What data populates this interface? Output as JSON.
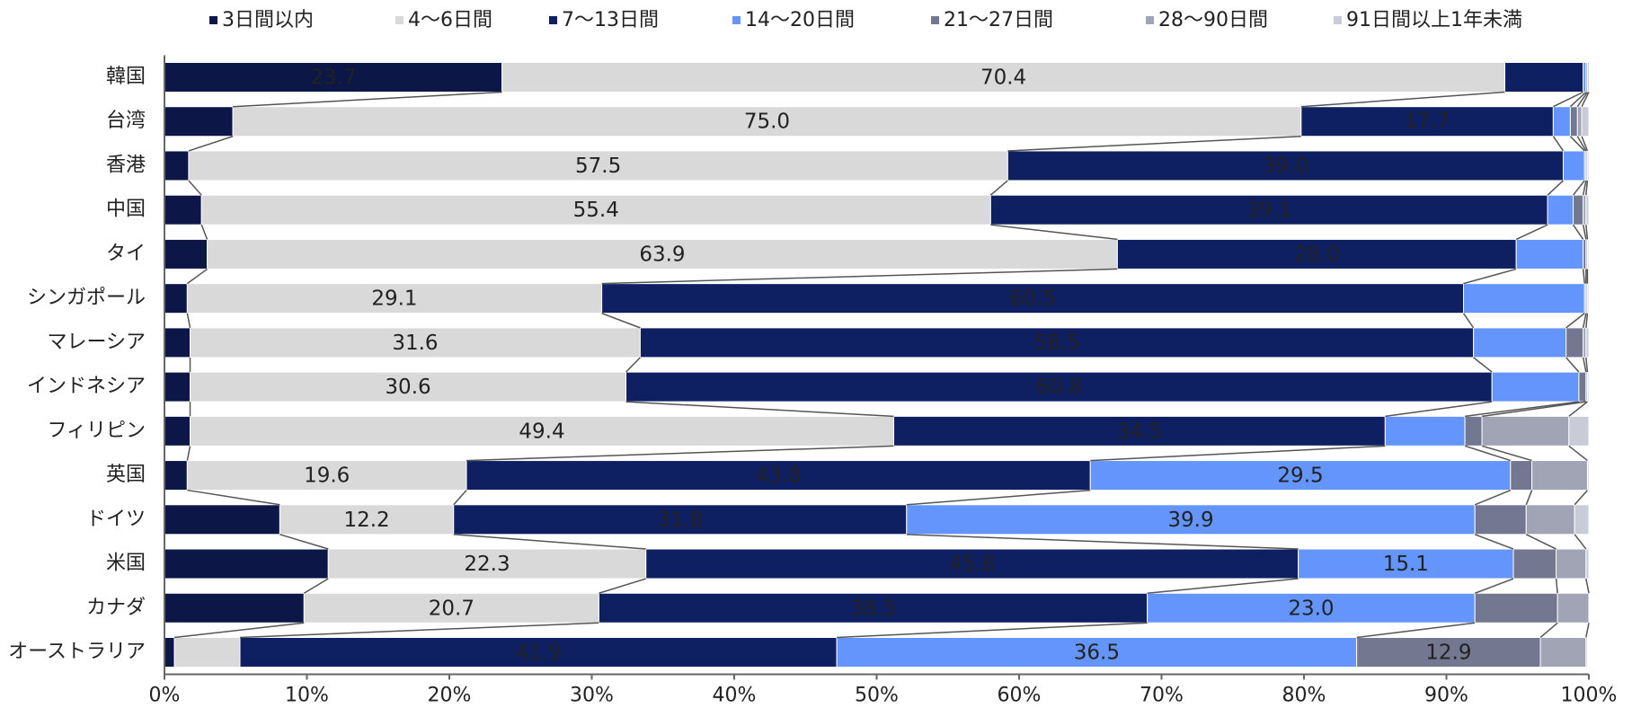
{
  "chart_data": {
    "type": "stacked-barh",
    "categories": [
      "韓国",
      "台湾",
      "香港",
      "中国",
      "タイ",
      "シンガポール",
      "マレーシア",
      "インドネシア",
      "フィリピン",
      "英国",
      "ドイツ",
      "米国",
      "カナダ",
      "オーストラリア"
    ],
    "series": [
      {
        "name": "3日間以内",
        "color": "#0c1747",
        "values": [
          23.7,
          4.8,
          1.7,
          2.6,
          3.0,
          1.6,
          1.8,
          1.8,
          1.8,
          1.6,
          8.1,
          11.5,
          9.8,
          0.7
        ],
        "value_labels": [
          "23.7",
          null,
          null,
          null,
          null,
          null,
          null,
          null,
          null,
          null,
          null,
          null,
          null,
          null
        ]
      },
      {
        "name": "4～6日間",
        "color": "#d9d9d9",
        "values": [
          70.4,
          75.0,
          57.5,
          55.4,
          63.9,
          29.1,
          31.6,
          30.6,
          49.4,
          19.6,
          12.2,
          22.3,
          20.7,
          4.6
        ],
        "value_labels": [
          "70.4",
          "75.0",
          "57.5",
          "55.4",
          "63.9",
          "29.1",
          "31.6",
          "30.6",
          "49.4",
          "19.6",
          "12.2",
          "22.3",
          "20.7",
          null
        ]
      },
      {
        "name": "7～13日間",
        "color": "#0f2062",
        "values": [
          5.5,
          17.7,
          39.0,
          39.1,
          28.0,
          60.5,
          58.5,
          60.8,
          34.5,
          43.8,
          31.8,
          45.8,
          38.5,
          41.9
        ],
        "value_labels": [
          null,
          "17.7",
          "39.0",
          "39.1",
          "28.0",
          "60.5",
          "58.5",
          "60.8",
          "34.5",
          "43.8",
          "31.8",
          "45.8",
          "38.5",
          "41.9"
        ]
      },
      {
        "name": "14～20日間",
        "color": "#6495fd",
        "values": [
          0.2,
          1.2,
          1.5,
          1.8,
          4.7,
          8.5,
          6.5,
          6.1,
          5.6,
          29.5,
          39.9,
          15.1,
          23.0,
          36.5
        ],
        "value_labels": [
          null,
          null,
          null,
          null,
          null,
          null,
          null,
          null,
          null,
          "29.5",
          "39.9",
          "15.1",
          "23.0",
          "36.5"
        ]
      },
      {
        "name": "21～27日間",
        "color": "#73778f",
        "values": [
          0.1,
          0.5,
          0.1,
          0.7,
          0.2,
          0.1,
          1.2,
          0.5,
          1.2,
          1.5,
          3.6,
          3.0,
          5.8,
          12.9
        ],
        "value_labels": [
          null,
          null,
          null,
          null,
          null,
          null,
          null,
          null,
          null,
          null,
          null,
          null,
          null,
          "12.9"
        ]
      },
      {
        "name": "28～90日間",
        "color": "#a1a4b5",
        "values": [
          0.1,
          0.3,
          0.1,
          0.2,
          0.1,
          0.1,
          0.2,
          0.1,
          6.1,
          3.9,
          3.4,
          2.1,
          2.2,
          3.2
        ],
        "value_labels": [
          null,
          null,
          null,
          null,
          null,
          null,
          null,
          null,
          null,
          null,
          null,
          null,
          null,
          null
        ]
      },
      {
        "name": "91日間以上1年未満",
        "color": "#c9cbd6",
        "values": [
          0.0,
          0.5,
          0.1,
          0.2,
          0.1,
          0.1,
          0.2,
          0.1,
          1.4,
          0.1,
          1.0,
          0.2,
          0.0,
          0.1
        ],
        "value_labels": [
          null,
          null,
          null,
          null,
          null,
          null,
          null,
          null,
          null,
          null,
          null,
          null,
          null,
          null
        ]
      }
    ],
    "xlim": [
      0,
      100
    ],
    "xticks": [
      {
        "value": 0,
        "label": "0%"
      },
      {
        "value": 10,
        "label": "10%"
      },
      {
        "value": 20,
        "label": "20%"
      },
      {
        "value": 30,
        "label": "30%"
      },
      {
        "value": 40,
        "label": "40%"
      },
      {
        "value": 50,
        "label": "50%"
      },
      {
        "value": 60,
        "label": "60%"
      },
      {
        "value": 70,
        "label": "70%"
      },
      {
        "value": 80,
        "label": "80%"
      },
      {
        "value": 90,
        "label": "90%"
      },
      {
        "value": 100,
        "label": "100%"
      }
    ],
    "legend": "top"
  }
}
